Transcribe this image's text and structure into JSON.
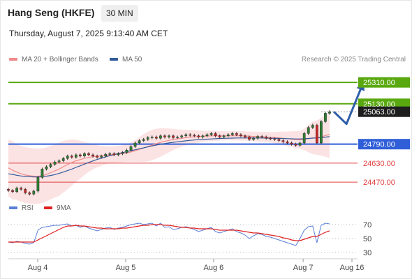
{
  "header": {
    "title": "Hang Seng (HKFE)",
    "timeframe": "30 MIN",
    "datetime": "Thursday, August 7, 2025 9:13:40 AM CET"
  },
  "legend": {
    "bollinger_label": "MA 20 + Bollinger Bands",
    "bollinger_color": "#f08a8a",
    "ma50_label": "MA 50",
    "ma50_color": "#335a9a",
    "credit": "Research © 2025 Trading Central",
    "rsi_label": "RSI",
    "rsi_color": "#5b7fd6",
    "ma9_label": "9MA",
    "ma9_color": "#e02020"
  },
  "chart_data": [
    {
      "type": "candlestick",
      "ylim": [
        24330,
        25440
      ],
      "x_ticks": [
        "Aug 4",
        "Aug 5",
        "Aug 6",
        "Aug 7",
        "Aug 16"
      ],
      "levels": [
        {
          "value": 25310.0,
          "label": "25310.00",
          "style": "resistance",
          "color": "#59a80f"
        },
        {
          "value": 25130.0,
          "label": "25130.00",
          "style": "resistance",
          "color": "#59a80f"
        },
        {
          "value": 25063.0,
          "label": "25063.00",
          "style": "last-price",
          "color": "#1e1e1e"
        },
        {
          "value": 24790.0,
          "label": "24790.00",
          "style": "pivot",
          "color": "#2f5ed8"
        },
        {
          "value": 24630.0,
          "label": "24630.00",
          "style": "support",
          "color": "#e04040"
        },
        {
          "value": 24470.0,
          "label": "24470.00",
          "style": "support",
          "color": "#e04040"
        }
      ],
      "trend_path": [
        {
          "t": 77,
          "v": 25063
        },
        {
          "t": 80,
          "v": 24960
        },
        {
          "t": 84,
          "v": 25310
        }
      ],
      "close": [
        24400,
        24390,
        24420,
        24410,
        24380,
        24370,
        24395,
        24510,
        24580,
        24600,
        24620,
        24640,
        24650,
        24670,
        24690,
        24680,
        24700,
        24690,
        24710,
        24700,
        24690,
        24680,
        24690,
        24705,
        24710,
        24700,
        24710,
        24720,
        24740,
        24770,
        24800,
        24820,
        24830,
        24845,
        24850,
        24840,
        24860,
        24850,
        24860,
        24845,
        24850,
        24860,
        24870,
        24865,
        24860,
        24850,
        24860,
        24870,
        24880,
        24860,
        24850,
        24860,
        24870,
        24880,
        24870,
        24860,
        24850,
        24830,
        24840,
        24855,
        24850,
        24840,
        24835,
        24830,
        24820,
        24810,
        24800,
        24790,
        24780,
        24800,
        24880,
        24930,
        24950,
        24800,
        24980,
        25050,
        25063
      ],
      "ma20": [
        24590,
        24570,
        24555,
        24540,
        24530,
        24525,
        24520,
        24520,
        24525,
        24535,
        24550,
        24565,
        24580,
        24600,
        24618,
        24635,
        24650,
        24660,
        24670,
        24678,
        24684,
        24688,
        24692,
        24696,
        24700,
        24703,
        24706,
        24710,
        24716,
        24724,
        24734,
        24746,
        24758,
        24770,
        24782,
        24794,
        24805,
        24814,
        24822,
        24829,
        24835,
        24840,
        24845,
        24849,
        24852,
        24854,
        24856,
        24858,
        24860,
        24860,
        24860,
        24860,
        24860,
        24861,
        24861,
        24860,
        24859,
        24857,
        24855,
        24853,
        24852,
        24850,
        24848,
        24846,
        24843,
        24840,
        24836,
        24832,
        24828,
        24826,
        24830,
        24836,
        24843,
        24845,
        24852,
        24862,
        24872
      ],
      "bb_upper": [
        24830,
        24815,
        24790,
        24775,
        24765,
        24760,
        24755,
        24752,
        24755,
        24762,
        24775,
        24790,
        24805,
        24818,
        24826,
        24830,
        24828,
        24820,
        24810,
        24800,
        24790,
        24782,
        24776,
        24772,
        24770,
        24772,
        24776,
        24782,
        24790,
        24805,
        24825,
        24850,
        24875,
        24895,
        24910,
        24920,
        24925,
        24925,
        24922,
        24918,
        24914,
        24912,
        24911,
        24910,
        24908,
        24905,
        24903,
        24902,
        24903,
        24902,
        24900,
        24898,
        24898,
        24900,
        24900,
        24900,
        24898,
        24896,
        24895,
        24894,
        24893,
        24893,
        24893,
        24894,
        24895,
        24896,
        24897,
        24898,
        24899,
        24900,
        24920,
        24950,
        24980,
        24990,
        25010,
        25040,
        25070
      ],
      "bb_lower": [
        24350,
        24325,
        24320,
        24305,
        24295,
        24290,
        24285,
        24288,
        24295,
        24308,
        24325,
        24340,
        24355,
        24382,
        24410,
        24440,
        24472,
        24500,
        24530,
        24556,
        24578,
        24594,
        24608,
        24620,
        24630,
        24634,
        24636,
        24638,
        24642,
        24643,
        24643,
        24642,
        24641,
        24645,
        24654,
        24668,
        24685,
        24703,
        24722,
        24740,
        24756,
        24768,
        24779,
        24788,
        24796,
        24803,
        24809,
        24814,
        24817,
        24818,
        24820,
        24822,
        24822,
        24822,
        24822,
        24820,
        24820,
        24818,
        24815,
        24812,
        24811,
        24807,
        24803,
        24798,
        24791,
        24784,
        24775,
        24766,
        24757,
        24752,
        24740,
        24722,
        24706,
        24700,
        24694,
        24684,
        24674
      ],
      "ma50": [
        24540,
        24535,
        24528,
        24522,
        24518,
        24516,
        24514,
        24514,
        24516,
        24520,
        24526,
        24534,
        24544,
        24555,
        24567,
        24580,
        24594,
        24608,
        24622,
        24636,
        24649,
        24661,
        24672,
        24683,
        24693,
        24702,
        24711,
        24719,
        24727,
        24735,
        24743,
        24751,
        24759,
        24767,
        24775,
        24782,
        24789,
        24795,
        24801,
        24806,
        24810,
        24814,
        24818,
        24822,
        24825,
        24828,
        24830,
        24832,
        24834,
        24836,
        24838,
        24839,
        24840,
        24841,
        24842,
        24842,
        24842,
        24842,
        24842,
        24842,
        24842,
        24841,
        24840,
        24839,
        24838,
        24837,
        24836,
        24835,
        24834,
        24834,
        24835,
        24838,
        24841,
        24842,
        24845,
        24849,
        24853
      ]
    },
    {
      "type": "line",
      "ylim": [
        20,
        80
      ],
      "y_ticks": [
        70,
        50,
        30
      ],
      "rsi": [
        45,
        44,
        46,
        45,
        43,
        42,
        44,
        62,
        66,
        67,
        68,
        69,
        69,
        70,
        71,
        68,
        69,
        66,
        68,
        65,
        63,
        61,
        63,
        65,
        66,
        63,
        65,
        66,
        68,
        70,
        71,
        72,
        70,
        71,
        72,
        68,
        72,
        66,
        67,
        63,
        64,
        66,
        67,
        65,
        63,
        60,
        62,
        64,
        66,
        60,
        58,
        60,
        62,
        64,
        60,
        58,
        55,
        50,
        54,
        57,
        56,
        53,
        52,
        50,
        48,
        46,
        44,
        42,
        40,
        50,
        62,
        67,
        68,
        44,
        69,
        72,
        71
      ],
      "ma9": [
        45,
        45,
        45,
        45,
        45,
        45,
        45,
        48,
        51,
        54,
        57,
        60,
        63,
        66,
        68,
        68,
        69,
        68,
        68,
        67,
        66,
        65,
        65,
        64,
        64,
        64,
        64,
        65,
        65,
        66,
        67,
        68,
        69,
        69,
        70,
        70,
        70,
        69,
        69,
        68,
        67,
        66,
        66,
        65,
        65,
        64,
        64,
        64,
        64,
        63,
        62,
        62,
        62,
        62,
        62,
        61,
        60,
        59,
        58,
        58,
        57,
        56,
        55,
        54,
        53,
        51,
        50,
        48,
        47,
        47,
        49,
        51,
        53,
        53,
        56,
        59,
        61
      ]
    }
  ]
}
